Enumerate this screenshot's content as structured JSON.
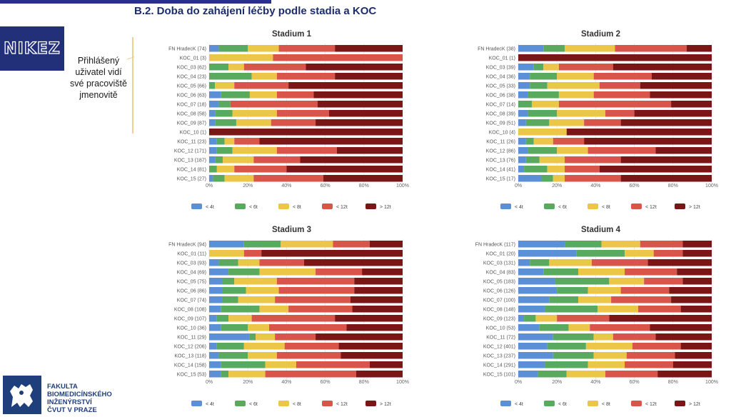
{
  "header": {
    "title": "B.2. Doba do zahájení léčby podle stadia a KOC"
  },
  "sidebar": {
    "logo_text": "NIKEZ",
    "note": "Přihlášený uživatel vidí své pracoviště jmenovitě"
  },
  "footer": {
    "faculty_lines": [
      "FAKULTA",
      "BIOMEDICÍNSKÉHO",
      "INŽENÝRSTVÍ",
      "ČVUT V PRAZE"
    ]
  },
  "colors": {
    "lt4": "#5b8fd6",
    "lt6": "#59aa5e",
    "lt8": "#ecc646",
    "lt12": "#d9554a",
    "gt12": "#7a1616",
    "title": "#1c2d6e",
    "brand": "#22307a"
  },
  "chart_data": [
    {
      "type": "bar",
      "orientation": "horizontal",
      "stacked": true,
      "percent": true,
      "title": "Stadium 1",
      "categories": [
        "FN HradecK (74)",
        "KOC_01 (3)",
        "KOC_03 (62)",
        "KOC_04 (23)",
        "KOC_05 (66)",
        "KOC_06 (63)",
        "KOC_07 (18)",
        "KOC_08 (58)",
        "KOC_09 (87)",
        "KOC_10 (1)",
        "KOC_11 (23)",
        "KOC_12 (171)",
        "KOC_13 (187)",
        "KOC_14 (81)",
        "KOC_15 (27)"
      ],
      "series": [
        {
          "name": "< 4t",
          "color": "#5b8fd6",
          "values": [
            5,
            0,
            0,
            0,
            0,
            6,
            5,
            3,
            3,
            0,
            4,
            4,
            3,
            0,
            2
          ]
        },
        {
          "name": "< 6t",
          "color": "#59aa5e",
          "values": [
            15,
            0,
            10,
            22,
            3,
            15,
            6,
            9,
            11,
            0,
            4,
            8,
            4,
            4,
            6
          ]
        },
        {
          "name": "< 8t",
          "color": "#ecc646",
          "values": [
            16,
            33,
            8,
            13,
            10,
            14,
            0,
            23,
            18,
            0,
            5,
            23,
            16,
            9,
            15
          ]
        },
        {
          "name": "< 12t",
          "color": "#d9554a",
          "values": [
            29,
            67,
            32,
            30,
            28,
            19,
            45,
            27,
            23,
            0,
            13,
            31,
            24,
            27,
            36
          ]
        },
        {
          "name": "> 12t",
          "color": "#7a1616",
          "values": [
            35,
            0,
            50,
            35,
            59,
            46,
            44,
            38,
            45,
            100,
            74,
            34,
            53,
            60,
            41
          ]
        }
      ],
      "xlim": [
        0,
        100
      ],
      "xticks": [
        "0%",
        "20%",
        "40%",
        "60%",
        "80%",
        "100%"
      ],
      "legend": "bottom"
    },
    {
      "type": "bar",
      "orientation": "horizontal",
      "stacked": true,
      "percent": true,
      "title": "Stadium 2",
      "categories": [
        "FN HradecK (38)",
        "KOC_01 (1)",
        "KOC_03 (39)",
        "KOC_04 (36)",
        "KOC_05 (33)",
        "KOC_06 (38)",
        "KOC_07 (14)",
        "KOC_08 (39)",
        "KOC_09 (51)",
        "KOC_10 (4)",
        "KOC_11 (26)",
        "KOC_12 (86)",
        "KOC_13 (76)",
        "KOC_14 (41)",
        "KOC_15 (17)"
      ],
      "series": [
        {
          "name": "< 4t",
          "color": "#5b8fd6",
          "values": [
            13,
            0,
            8,
            6,
            6,
            5,
            0,
            5,
            4,
            0,
            4,
            5,
            4,
            3,
            12
          ]
        },
        {
          "name": "< 6t",
          "color": "#59aa5e",
          "values": [
            11,
            0,
            5,
            14,
            9,
            16,
            7,
            15,
            12,
            0,
            4,
            15,
            7,
            12,
            6
          ]
        },
        {
          "name": "< 8t",
          "color": "#ecc646",
          "values": [
            26,
            0,
            8,
            19,
            27,
            18,
            14,
            25,
            18,
            25,
            10,
            16,
            13,
            9,
            6
          ]
        },
        {
          "name": "< 12t",
          "color": "#d9554a",
          "values": [
            37,
            0,
            28,
            30,
            21,
            29,
            58,
            15,
            19,
            0,
            16,
            35,
            29,
            18,
            29
          ]
        },
        {
          "name": "> 12t",
          "color": "#7a1616",
          "values": [
            13,
            100,
            51,
            31,
            37,
            32,
            21,
            40,
            47,
            75,
            66,
            29,
            47,
            58,
            47
          ]
        }
      ],
      "xlim": [
        0,
        100
      ],
      "xticks": [
        "0%",
        "20%",
        "40%",
        "60%",
        "80%",
        "100%"
      ],
      "legend": "bottom"
    },
    {
      "type": "bar",
      "orientation": "horizontal",
      "stacked": true,
      "percent": true,
      "title": "Stadium 3",
      "categories": [
        "FN HradecK (94)",
        "KOC_01 (11)",
        "KOC_03 (93)",
        "KOC_04 (69)",
        "KOC_05 (75)",
        "KOC_06 (86)",
        "KOC_07 (74)",
        "KOC_08 (108)",
        "KOC_09 (107)",
        "KOC_10 (36)",
        "KOC_11 (29)",
        "KOC_12 (206)",
        "KOC_13 (118)",
        "KOC_14 (158)",
        "KOC_15 (53)"
      ],
      "series": [
        {
          "name": "< 4t",
          "color": "#5b8fd6",
          "values": [
            18,
            0,
            5,
            10,
            7,
            7,
            7,
            6,
            4,
            6,
            21,
            4,
            5,
            6,
            6
          ]
        },
        {
          "name": "< 6t",
          "color": "#59aa5e",
          "values": [
            19,
            0,
            10,
            16,
            6,
            12,
            8,
            20,
            6,
            14,
            3,
            14,
            15,
            23,
            4
          ]
        },
        {
          "name": "< 8t",
          "color": "#ecc646",
          "values": [
            27,
            18,
            11,
            29,
            22,
            17,
            19,
            15,
            12,
            11,
            10,
            21,
            15,
            16,
            19
          ]
        },
        {
          "name": "< 12t",
          "color": "#d9554a",
          "values": [
            19,
            9,
            23,
            24,
            40,
            39,
            39,
            33,
            43,
            40,
            21,
            28,
            33,
            38,
            47
          ]
        },
        {
          "name": "> 12t",
          "color": "#7a1616",
          "values": [
            17,
            73,
            51,
            21,
            25,
            25,
            27,
            26,
            35,
            29,
            45,
            33,
            32,
            17,
            24
          ]
        }
      ],
      "xlim": [
        0,
        100
      ],
      "xticks": [
        "0%",
        "20%",
        "40%",
        "60%",
        "80%",
        "100%"
      ],
      "legend": "bottom"
    },
    {
      "type": "bar",
      "orientation": "horizontal",
      "stacked": true,
      "percent": true,
      "title": "Stadium 4",
      "categories": [
        "FN HradecK (117)",
        "KOC_01 (20)",
        "KOC_03 (131)",
        "KOC_04 (83)",
        "KOC_05 (183)",
        "KOC_06 (126)",
        "KOC_07 (100)",
        "KOC_08 (148)",
        "KOC_09 (123)",
        "KOC_10 (53)",
        "KOC_11 (72)",
        "KOC_12 (401)",
        "KOC_13 (237)",
        "KOC_14 (291)",
        "KOC_15 (101)"
      ],
      "series": [
        {
          "name": "< 4t",
          "color": "#5b8fd6",
          "values": [
            24,
            30,
            6,
            13,
            19,
            20,
            16,
            14,
            3,
            11,
            18,
            15,
            18,
            14,
            10
          ]
        },
        {
          "name": "< 6t",
          "color": "#59aa5e",
          "values": [
            19,
            25,
            10,
            18,
            28,
            16,
            15,
            27,
            6,
            15,
            21,
            20,
            21,
            22,
            15
          ]
        },
        {
          "name": "< 8t",
          "color": "#ecc646",
          "values": [
            20,
            15,
            22,
            24,
            18,
            17,
            17,
            21,
            11,
            11,
            10,
            24,
            17,
            19,
            20
          ]
        },
        {
          "name": "< 12t",
          "color": "#d9554a",
          "values": [
            22,
            15,
            29,
            27,
            20,
            25,
            31,
            22,
            27,
            31,
            22,
            25,
            25,
            25,
            27
          ]
        },
        {
          "name": "> 12t",
          "color": "#7a1616",
          "values": [
            15,
            15,
            33,
            18,
            15,
            22,
            21,
            16,
            53,
            32,
            29,
            16,
            19,
            20,
            28
          ]
        }
      ],
      "xlim": [
        0,
        100
      ],
      "xticks": [
        "0%",
        "20%",
        "40%",
        "60%",
        "80%",
        "100%"
      ],
      "legend": "bottom"
    }
  ]
}
